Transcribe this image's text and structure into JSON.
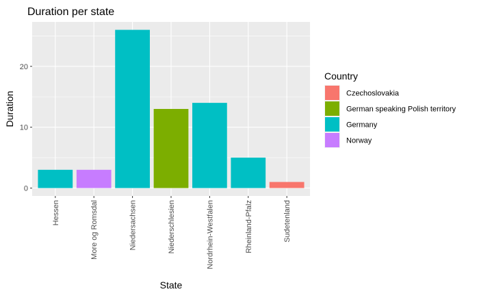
{
  "chart_data": {
    "type": "bar",
    "title": "Duration per state",
    "xlabel": "State",
    "ylabel": "Duration",
    "categories": [
      "Hessen",
      "More og Romsdal",
      "Niedersachsen",
      "Niederschlesien",
      "Nordrhein-Westfalen",
      "Rheinland-Pfalz",
      "Sudetenland"
    ],
    "values": [
      3,
      3,
      26,
      13,
      14,
      5,
      1
    ],
    "country": [
      "Germany",
      "Norway",
      "Germany",
      "German speaking Polish territory",
      "Germany",
      "Germany",
      "Czechoslovakia"
    ],
    "yticks": [
      0,
      10,
      20
    ],
    "ylim": [
      -1.3,
      27.3
    ],
    "grid": true,
    "legend": {
      "title": "Country",
      "position": "right",
      "entries": [
        {
          "name": "Czechoslovakia",
          "color": "#F8766D"
        },
        {
          "name": "German speaking Polish territory",
          "color": "#7CAE00"
        },
        {
          "name": "Germany",
          "color": "#00BFC4"
        },
        {
          "name": "Norway",
          "color": "#C77CFF"
        }
      ]
    }
  },
  "colors": {
    "panel_background": "#EBEBEB",
    "grid": "#FFFFFF",
    "axis_text": "#4D4D4D"
  }
}
